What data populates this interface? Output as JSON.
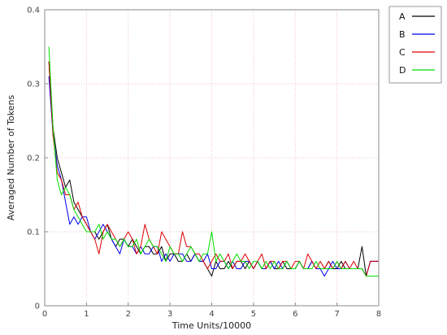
{
  "chart_data": {
    "type": "line",
    "title": "",
    "xlabel": "Time Units/10000",
    "ylabel": "Averaged Number of Tokens",
    "xlim": [
      0,
      8
    ],
    "ylim": [
      0,
      0.4
    ],
    "x_ticks": [
      0,
      1,
      2,
      3,
      4,
      5,
      6,
      7,
      8
    ],
    "y_ticks": [
      0,
      0.1,
      0.2,
      0.3,
      0.4
    ],
    "x_tick_labels": [
      "0",
      "1",
      "2",
      "3",
      "4",
      "5",
      "6",
      "7",
      "8"
    ],
    "y_tick_labels": [
      "0",
      "0.1",
      "0.2",
      "0.3",
      "0.4"
    ],
    "grid": true,
    "grid_color": "#f2c0c0",
    "legend_position": "top-right-outside",
    "x": [
      0.1,
      0.2,
      0.3,
      0.4,
      0.5,
      0.6,
      0.7,
      0.8,
      0.9,
      1.0,
      1.1,
      1.2,
      1.3,
      1.4,
      1.5,
      1.6,
      1.7,
      1.8,
      1.9,
      2.0,
      2.1,
      2.2,
      2.3,
      2.4,
      2.5,
      2.6,
      2.7,
      2.8,
      2.9,
      3.0,
      3.1,
      3.2,
      3.3,
      3.4,
      3.5,
      3.6,
      3.7,
      3.8,
      3.9,
      4.0,
      4.1,
      4.2,
      4.3,
      4.4,
      4.5,
      4.6,
      4.7,
      4.8,
      4.9,
      5.0,
      5.1,
      5.2,
      5.3,
      5.4,
      5.5,
      5.6,
      5.7,
      5.8,
      5.9,
      6.0,
      6.1,
      6.2,
      6.3,
      6.4,
      6.5,
      6.6,
      6.7,
      6.8,
      6.9,
      7.0,
      7.1,
      7.2,
      7.3,
      7.4,
      7.5,
      7.6,
      7.7,
      7.8,
      7.9,
      8.0
    ],
    "series": [
      {
        "name": "A",
        "color": "#000000",
        "values": [
          0.33,
          0.24,
          0.2,
          0.18,
          0.16,
          0.17,
          0.14,
          0.13,
          0.12,
          0.11,
          0.1,
          0.1,
          0.09,
          0.1,
          0.11,
          0.09,
          0.08,
          0.09,
          0.09,
          0.08,
          0.09,
          0.08,
          0.07,
          0.08,
          0.08,
          0.07,
          0.07,
          0.08,
          0.06,
          0.07,
          0.07,
          0.06,
          0.06,
          0.07,
          0.06,
          0.07,
          0.06,
          0.06,
          0.05,
          0.04,
          0.06,
          0.05,
          0.05,
          0.06,
          0.05,
          0.06,
          0.06,
          0.05,
          0.06,
          0.05,
          0.06,
          0.05,
          0.05,
          0.06,
          0.05,
          0.05,
          0.06,
          0.05,
          0.05,
          0.05,
          0.06,
          0.05,
          0.05,
          0.06,
          0.05,
          0.05,
          0.05,
          0.06,
          0.05,
          0.05,
          0.06,
          0.05,
          0.05,
          0.05,
          0.05,
          0.08,
          0.04,
          0.06,
          0.06,
          0.06
        ]
      },
      {
        "name": "B",
        "color": "#0000ee",
        "values": [
          0.31,
          0.23,
          0.19,
          0.17,
          0.14,
          0.11,
          0.12,
          0.11,
          0.12,
          0.12,
          0.1,
          0.09,
          0.1,
          0.11,
          0.1,
          0.09,
          0.08,
          0.07,
          0.09,
          0.08,
          0.08,
          0.07,
          0.08,
          0.07,
          0.07,
          0.08,
          0.08,
          0.06,
          0.07,
          0.06,
          0.07,
          0.07,
          0.07,
          0.06,
          0.06,
          0.07,
          0.06,
          0.06,
          0.07,
          0.05,
          0.05,
          0.06,
          0.06,
          0.05,
          0.06,
          0.05,
          0.05,
          0.06,
          0.06,
          0.05,
          0.06,
          0.05,
          0.05,
          0.06,
          0.05,
          0.06,
          0.05,
          0.06,
          0.05,
          0.05,
          0.06,
          0.05,
          0.05,
          0.06,
          0.05,
          0.05,
          0.04,
          0.05,
          0.06,
          0.05,
          0.05,
          0.06,
          0.05,
          0.05,
          0.05,
          0.05,
          0.04,
          0.06,
          0.06,
          0.06
        ]
      },
      {
        "name": "C",
        "color": "#dd0000",
        "values": [
          0.33,
          0.23,
          0.18,
          0.17,
          0.15,
          0.15,
          0.13,
          0.14,
          0.12,
          0.11,
          0.1,
          0.09,
          0.07,
          0.1,
          0.11,
          0.1,
          0.09,
          0.08,
          0.09,
          0.1,
          0.09,
          0.07,
          0.08,
          0.11,
          0.09,
          0.08,
          0.07,
          0.1,
          0.09,
          0.08,
          0.07,
          0.07,
          0.1,
          0.08,
          0.08,
          0.07,
          0.07,
          0.06,
          0.05,
          0.06,
          0.07,
          0.06,
          0.06,
          0.07,
          0.05,
          0.06,
          0.06,
          0.07,
          0.06,
          0.05,
          0.06,
          0.07,
          0.05,
          0.06,
          0.06,
          0.05,
          0.06,
          0.06,
          0.05,
          0.06,
          0.06,
          0.05,
          0.07,
          0.06,
          0.05,
          0.06,
          0.05,
          0.06,
          0.05,
          0.06,
          0.05,
          0.06,
          0.05,
          0.06,
          0.05,
          0.05,
          0.04,
          0.06,
          0.06,
          0.06
        ]
      },
      {
        "name": "D",
        "color": "#00dd00",
        "values": [
          0.35,
          0.24,
          0.17,
          0.15,
          0.16,
          0.15,
          0.13,
          0.12,
          0.11,
          0.1,
          0.1,
          0.1,
          0.11,
          0.09,
          0.1,
          0.09,
          0.09,
          0.08,
          0.09,
          0.08,
          0.08,
          0.09,
          0.07,
          0.08,
          0.09,
          0.08,
          0.08,
          0.07,
          0.06,
          0.08,
          0.07,
          0.07,
          0.06,
          0.07,
          0.08,
          0.07,
          0.06,
          0.07,
          0.07,
          0.1,
          0.06,
          0.07,
          0.06,
          0.05,
          0.06,
          0.07,
          0.06,
          0.06,
          0.05,
          0.06,
          0.06,
          0.05,
          0.06,
          0.05,
          0.06,
          0.05,
          0.05,
          0.06,
          0.05,
          0.05,
          0.06,
          0.05,
          0.05,
          0.05,
          0.06,
          0.05,
          0.05,
          0.05,
          0.05,
          0.06,
          0.05,
          0.05,
          0.05,
          0.05,
          0.05,
          0.05,
          0.04,
          0.04,
          0.04,
          0.04
        ]
      }
    ]
  }
}
